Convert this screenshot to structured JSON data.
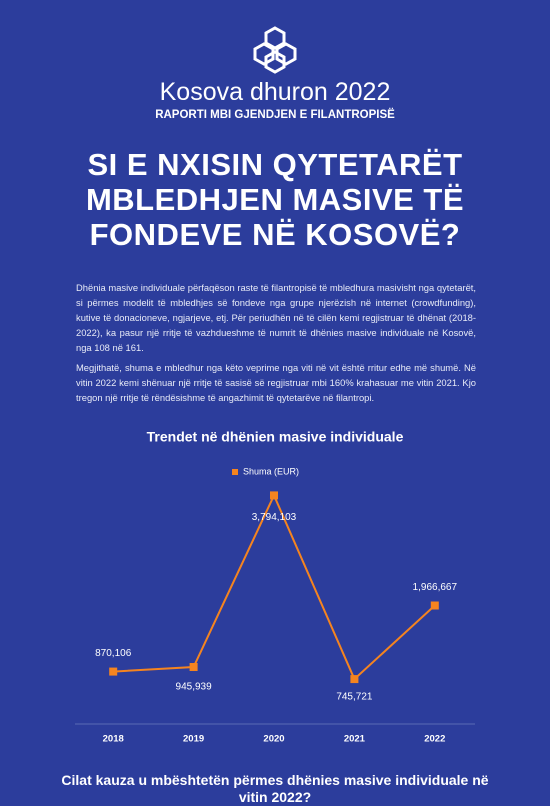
{
  "header": {
    "title": "Kosova dhuron 2022",
    "subtitle": "RAPORTI MBI GJENDJEN E FILANTROPISË"
  },
  "heading": [
    "SI E NXISIN QYTETARËT",
    "MBLEDHJEN MASIVE TË",
    "FONDEVE NË KOSOVË?"
  ],
  "paragraphs": [
    "Dhënia masive individuale përfaqëson raste të filantropisë të mbledhura masivisht nga qytetarët, si përmes modelit të mbledhjes së fondeve nga grupe njerëzish në internet (crowdfunding), kutive të donacioneve, ngjarjeve, etj. Për periudhën në të cilën kemi regjistruar të dhënat (2018-2022), ka pasur një rritje të vazhdueshme të numrit të dhënies masive individuale në Kosovë, nga 108 në 161.",
    "Megjithatë, shuma e mbledhur nga këto veprime nga viti në vit është rritur edhe më shumë. Në vitin 2022 kemi shënuar një rritje të sasisë së regjistruar mbi 160% krahasuar me vitin 2021. Kjo tregon një rritje të rëndësishme të angazhimit të qytetarëve në filantropi."
  ],
  "chart_data": {
    "type": "line",
    "title": "Trendet në dhënien masive individuale",
    "categories": [
      "2018",
      "2019",
      "2020",
      "2021",
      "2022"
    ],
    "series": [
      {
        "name": "Shuma (EUR)",
        "color": "#f5841f",
        "values": [
          870106,
          945939,
          3794103,
          745721,
          1966667
        ],
        "value_labels": [
          "870,106",
          "945,939",
          "3,794,103",
          "745,721",
          "1,966,667"
        ]
      }
    ],
    "ylim": [
      0,
      4000000
    ]
  },
  "footer_heading": "Cilat kauza u mbështetën përmes dhënies masive individuale në vitin 2022?"
}
